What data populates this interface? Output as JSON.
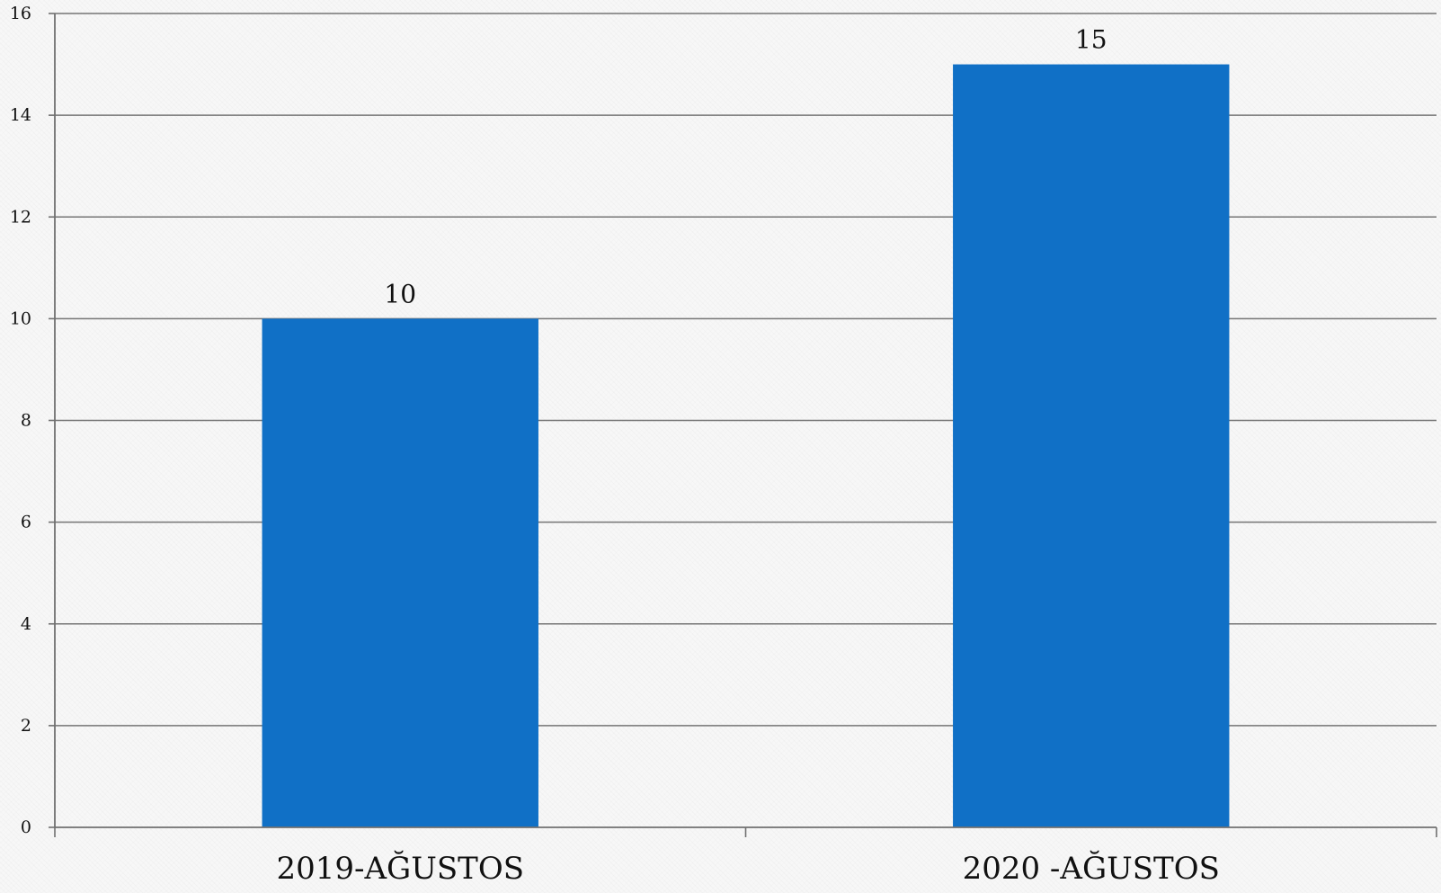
{
  "chart_data": {
    "type": "bar",
    "categories": [
      "2019-AĞUSTOS",
      "2020 -AĞUSTOS"
    ],
    "values": [
      10,
      15
    ],
    "data_labels": [
      "10",
      "15"
    ],
    "ylim": [
      0,
      16
    ],
    "yticks": [
      0,
      2,
      4,
      6,
      8,
      10,
      12,
      14,
      16
    ],
    "ytick_labels": [
      "0",
      "2",
      "4",
      "6",
      "8",
      "10",
      "12",
      "14",
      "16"
    ],
    "grid": true,
    "legend": "none",
    "title": "",
    "xlabel": "",
    "ylabel": ""
  },
  "colors": {
    "bar": "#1070c6",
    "grid": "#757575",
    "axis": "#707070",
    "text": "#111111"
  }
}
